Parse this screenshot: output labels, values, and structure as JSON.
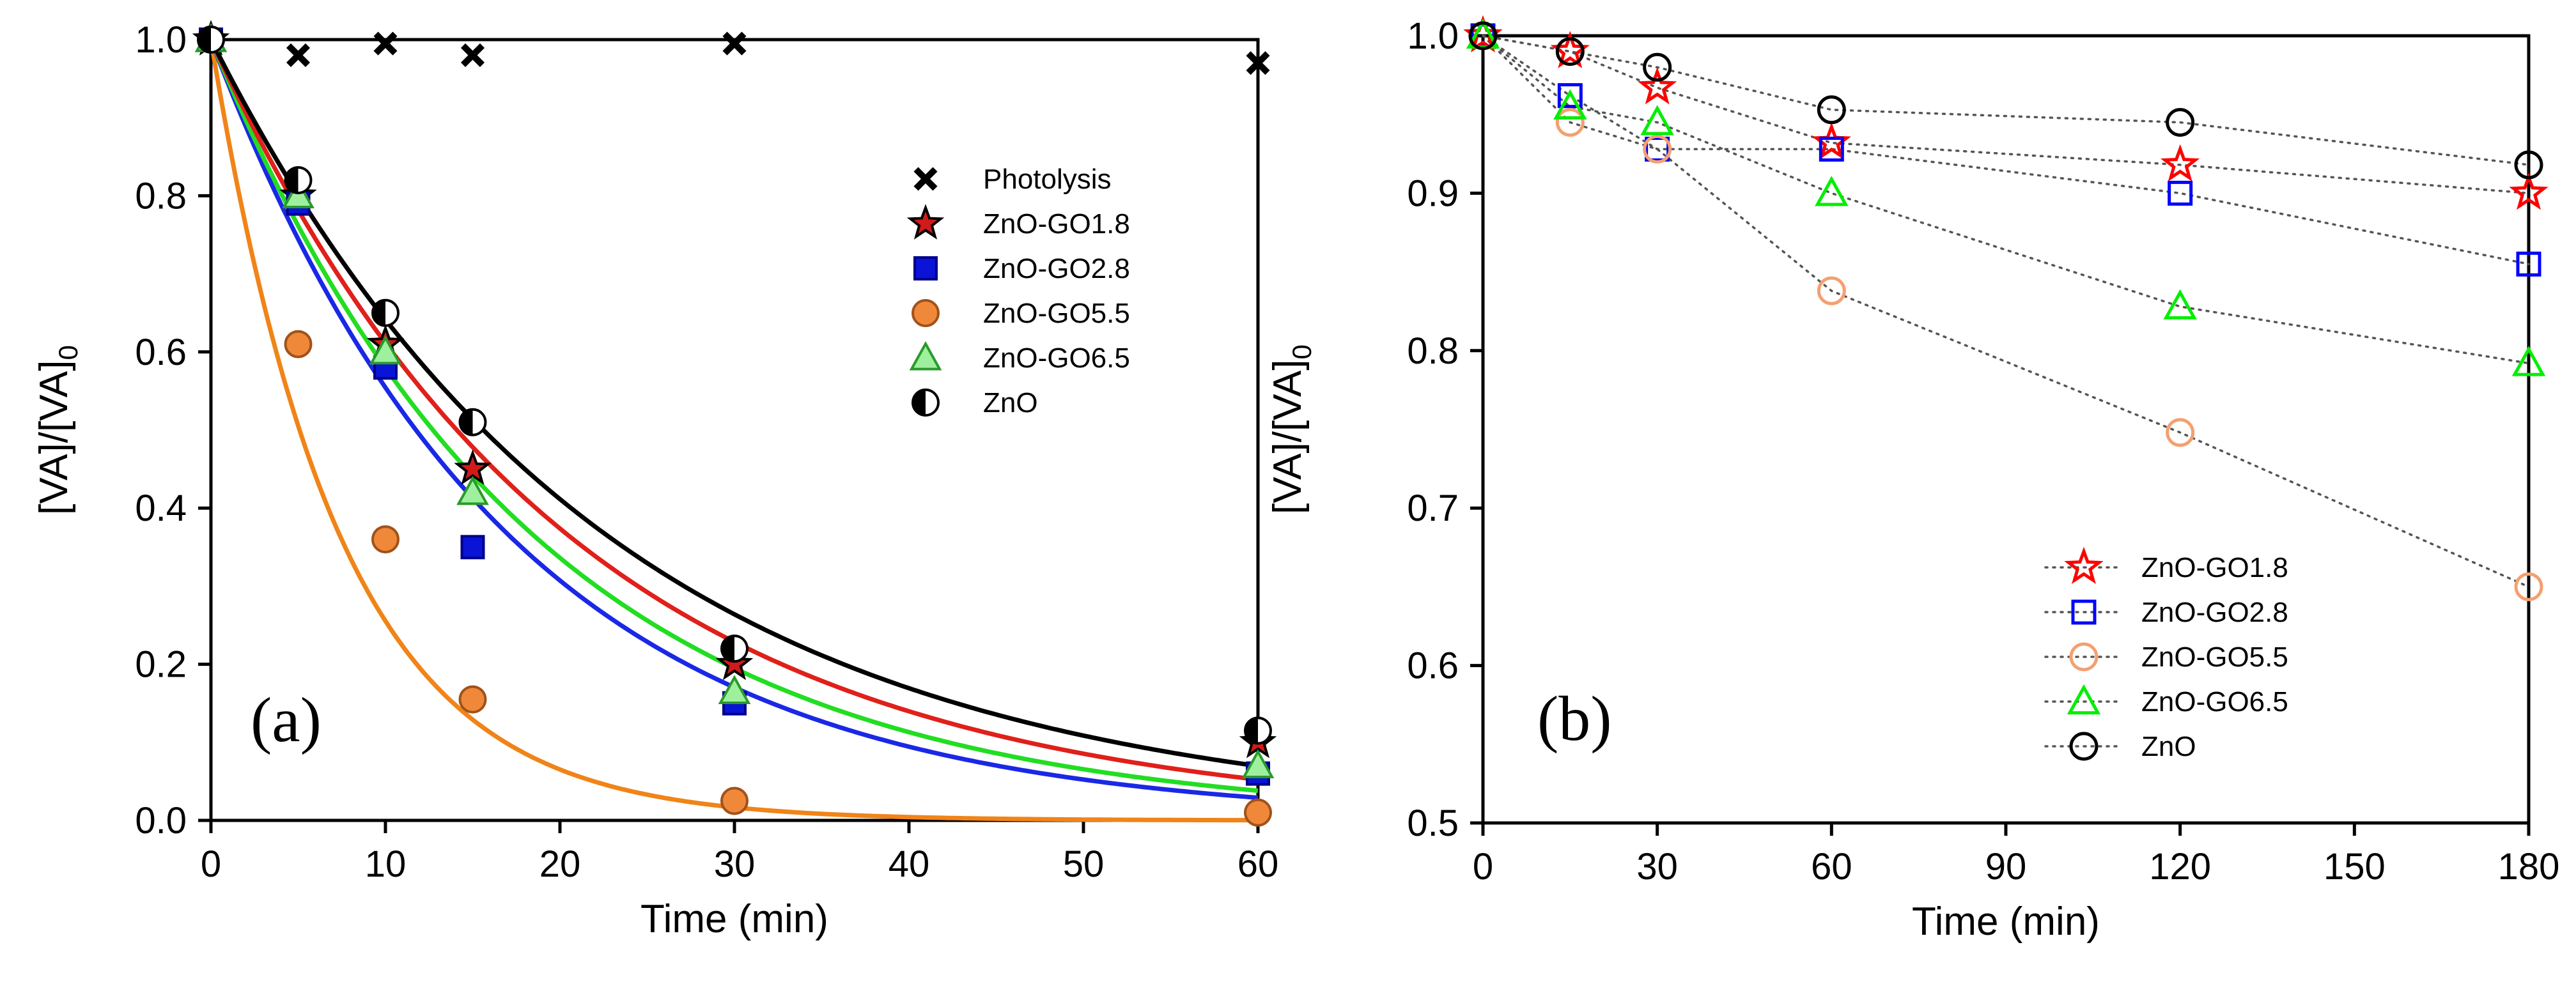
{
  "chart_data": [
    {
      "id": "a",
      "type": "scatter",
      "panel_label": "(a)",
      "xlabel": "Time (min)",
      "ylabel": {
        "main": "[VA]/[VA]",
        "sub": "0"
      },
      "xlim": [
        0,
        60
      ],
      "ylim": [
        0,
        1.0
      ],
      "xticks": [
        0,
        10,
        20,
        30,
        40,
        50,
        60
      ],
      "yticks": [
        0.0,
        0.2,
        0.4,
        0.6,
        0.8,
        1.0
      ],
      "ytick_labels": [
        "0.0",
        "0.2",
        "0.4",
        "0.6",
        "0.8",
        "1.0"
      ],
      "legend_position": "right",
      "series": [
        {
          "name": "Photolysis",
          "marker": "x",
          "color": "#000000",
          "fill": "none",
          "x": [
            0,
            5,
            10,
            15,
            30,
            60
          ],
          "y": [
            1.0,
            0.98,
            0.995,
            0.98,
            0.995,
            0.97
          ]
        },
        {
          "name": "ZnO-GO1.8",
          "marker": "star",
          "color": "#b01010",
          "fill": "#d11a1a",
          "stroke": "#000000",
          "x": [
            0,
            5,
            10,
            15,
            30,
            60
          ],
          "y": [
            1.0,
            0.8,
            0.61,
            0.45,
            0.2,
            0.1
          ],
          "fit_k": 0.0492,
          "fit_color": "#e0201a"
        },
        {
          "name": "ZnO-GO2.8",
          "marker": "square",
          "color": "#0000c8",
          "fill": "#0a14d6",
          "stroke": "#00008a",
          "x": [
            0,
            5,
            10,
            15,
            30,
            60
          ],
          "y": [
            1.0,
            0.79,
            0.58,
            0.35,
            0.15,
            0.06
          ],
          "fit_k": 0.059,
          "fit_color": "#1a28e6"
        },
        {
          "name": "ZnO-GO5.5",
          "marker": "circle",
          "color": "#f0883a",
          "fill": "#f0883a",
          "stroke": "#a0521a",
          "x": [
            0,
            5,
            10,
            15,
            30,
            60
          ],
          "y": [
            1.0,
            0.61,
            0.36,
            0.155,
            0.025,
            0.01
          ],
          "fit_k": 0.1365,
          "fit_color": "#f08418"
        },
        {
          "name": "ZnO-GO6.5",
          "marker": "triangle",
          "color": "#33dd33",
          "fill": "#9ef09e",
          "stroke": "#2a9a2a",
          "x": [
            0,
            5,
            10,
            15,
            30,
            60
          ],
          "y": [
            1.0,
            0.8,
            0.6,
            0.42,
            0.165,
            0.07
          ],
          "fit_k": 0.0545,
          "fit_color": "#22dd22"
        },
        {
          "name": "ZnO",
          "marker": "halfcircle",
          "color": "#000000",
          "fill": "#ffffff",
          "stroke": "#000000",
          "x": [
            0,
            5,
            10,
            15,
            30,
            60
          ],
          "y": [
            1.0,
            0.82,
            0.65,
            0.51,
            0.22,
            0.115
          ],
          "fit_k": 0.0444,
          "fit_color": "#000000"
        }
      ]
    },
    {
      "id": "b",
      "type": "line",
      "panel_label": "(b)",
      "xlabel": "Time (min)",
      "ylabel": {
        "main": "[VA]/[VA]",
        "sub": "0"
      },
      "xlim": [
        0,
        180
      ],
      "ylim": [
        0.5,
        1.0
      ],
      "xticks": [
        0,
        30,
        60,
        90,
        120,
        150,
        180
      ],
      "yticks": [
        0.5,
        0.6,
        0.7,
        0.8,
        0.9,
        1.0
      ],
      "ytick_labels": [
        "0.5",
        "0.6",
        "0.7",
        "0.8",
        "0.9",
        "1.0"
      ],
      "legend_position": "bottom-center",
      "line_style": "dotted",
      "series": [
        {
          "name": "ZnO-GO1.8",
          "marker": "star",
          "color": "#ff0000",
          "x": [
            0,
            15,
            30,
            60,
            120,
            180
          ],
          "y": [
            1.0,
            0.99,
            0.967,
            0.932,
            0.918,
            0.9
          ]
        },
        {
          "name": "ZnO-GO2.8",
          "marker": "square",
          "color": "#0000ff",
          "x": [
            0,
            15,
            30,
            60,
            120,
            180
          ],
          "y": [
            1.0,
            0.962,
            0.928,
            0.928,
            0.9,
            0.855
          ]
        },
        {
          "name": "ZnO-GO5.5",
          "marker": "circle",
          "color": "#f4a070",
          "x": [
            0,
            15,
            30,
            60,
            120,
            180
          ],
          "y": [
            1.0,
            0.945,
            0.928,
            0.838,
            0.748,
            0.65
          ]
        },
        {
          "name": "ZnO-GO6.5",
          "marker": "triangle",
          "color": "#00ee00",
          "x": [
            0,
            15,
            30,
            60,
            120,
            180
          ],
          "y": [
            1.0,
            0.955,
            0.945,
            0.9,
            0.828,
            0.792
          ]
        },
        {
          "name": "ZnO",
          "marker": "circle",
          "color": "#000000",
          "x": [
            0,
            15,
            30,
            60,
            120,
            180
          ],
          "y": [
            1.0,
            0.99,
            0.98,
            0.953,
            0.945,
            0.918
          ]
        }
      ]
    }
  ]
}
